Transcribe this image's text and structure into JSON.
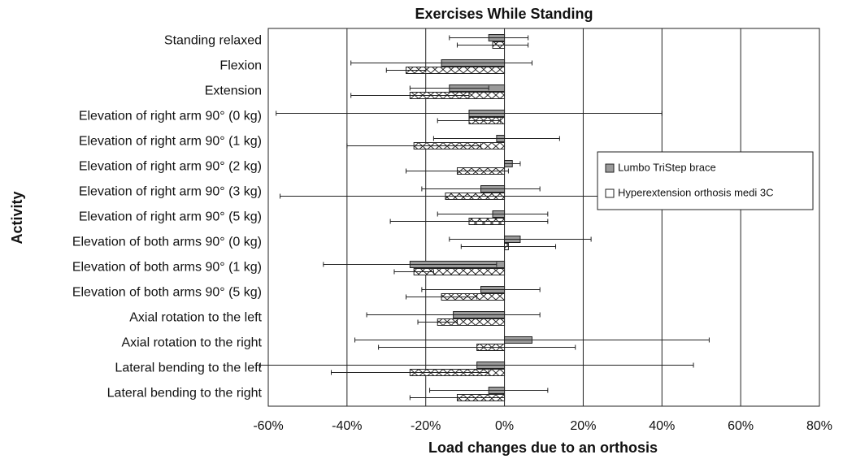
{
  "chart_data": {
    "type": "hbar",
    "title": "Exercises While Standing",
    "xlabel": "Load changes due to an orthosis",
    "ylabel": "Activity",
    "categories": [
      "Standing relaxed",
      "Flexion",
      "Extension",
      "Elevation of right arm 90° (0 kg)",
      "Elevation of right arm 90° (1 kg)",
      "Elevation of right arm 90° (2 kg)",
      "Elevation of right arm 90° (3 kg)",
      "Elevation of right arm 90° (5 kg)",
      "Elevation of both arms 90° (0 kg)",
      "Elevation of both arms 90° (1 kg)",
      "Elevation of both arms 90° (5 kg)",
      "Axial rotation to the left",
      "Axial rotation to the right",
      "Lateral bending to the left",
      "Lateral bending to the right"
    ],
    "series": [
      {
        "name": "Lumbo TriStep brace",
        "color": "#9a9a9a",
        "hatch": false,
        "values": [
          -4,
          -16,
          -14,
          -9,
          -2,
          2,
          -6,
          -3,
          4,
          -24,
          -6,
          -13,
          7,
          -7,
          -4
        ],
        "errors": [
          10,
          23,
          10,
          49,
          16,
          2,
          15,
          14,
          18,
          22,
          15,
          22,
          45,
          55,
          15
        ]
      },
      {
        "name": "Hyperextension orthosis medi 3C",
        "color": "#ffffff",
        "hatch": true,
        "values": [
          -3,
          -25,
          -24,
          -9,
          -23,
          -12,
          -15,
          -9,
          1,
          -23,
          -16,
          -17,
          -7,
          -24,
          -12
        ],
        "errors": [
          9,
          5,
          15,
          8,
          17,
          13,
          42,
          20,
          12,
          5,
          9,
          5,
          25,
          20,
          12
        ]
      }
    ],
    "xlim": [
      -60,
      80
    ],
    "xticks": [
      {
        "value": -60,
        "label": "-60%"
      },
      {
        "value": -40,
        "label": "-40%"
      },
      {
        "value": -20,
        "label": "-20%"
      },
      {
        "value": 0,
        "label": "0%"
      },
      {
        "value": 20,
        "label": "20%"
      },
      {
        "value": 40,
        "label": "40%"
      },
      {
        "value": 60,
        "label": "60%"
      },
      {
        "value": 80,
        "label": "80%"
      }
    ],
    "grid": true,
    "legend": "right"
  }
}
